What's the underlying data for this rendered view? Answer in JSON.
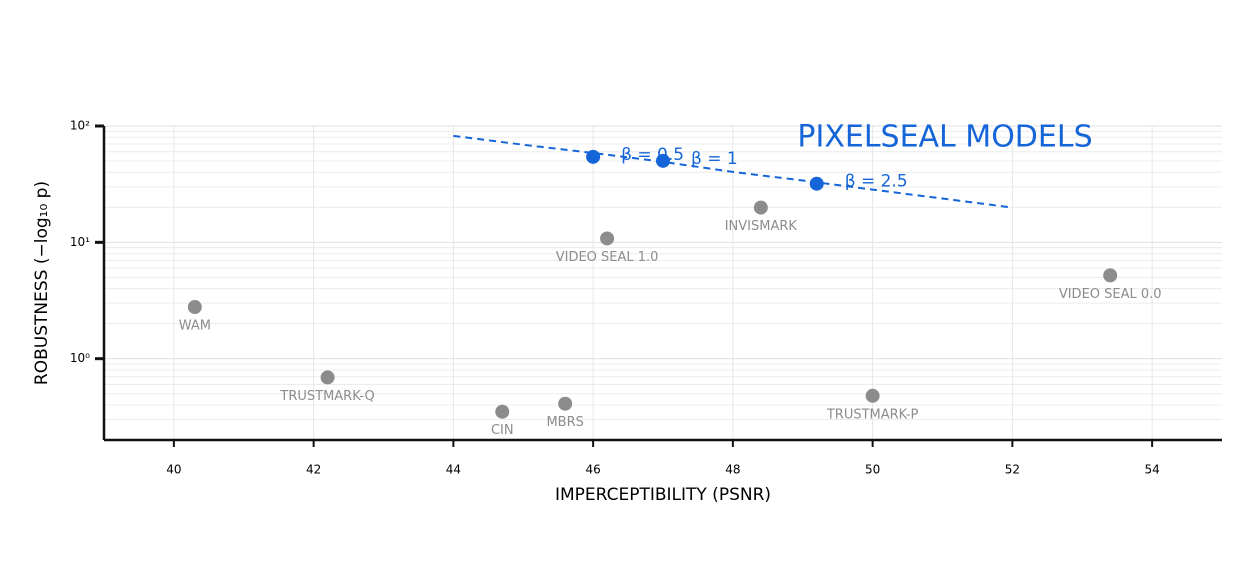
{
  "chart_data": {
    "type": "scatter",
    "xlabel": "IMPERCEPTIBILITY (PSNR)",
    "ylabel": "ROBUSTNESS (−log₁₀ p)",
    "annotation": "PIXELSEAL MODELS",
    "annotation_color": "#1565d8",
    "xlim": [
      39,
      55
    ],
    "xticks": [
      40,
      42,
      44,
      46,
      48,
      50,
      52,
      54
    ],
    "ylim": [
      0.2,
      100
    ],
    "yscale": "log",
    "yticks": [
      {
        "value": 1,
        "label": "10⁰"
      },
      {
        "value": 10,
        "label": "10¹"
      },
      {
        "value": 100,
        "label": "10²"
      }
    ],
    "grid": true,
    "minor_grid": true,
    "series": [
      {
        "color": "#8c8c8c",
        "label_position": "below",
        "x": [
          40.3,
          42.2,
          44.7,
          45.6,
          46.2,
          48.4,
          50.0,
          53.4
        ],
        "values": [
          2.78,
          0.69,
          0.35,
          0.41,
          10.8,
          19.9,
          0.48,
          5.2
        ],
        "labels": [
          "WAM",
          "TRUSTMARK-Q",
          "CIN",
          "MBRS",
          "VIDEO SEAL 1.0",
          "INVISMARK",
          "TRUSTMARK-P",
          "VIDEO SEAL 0.0"
        ]
      },
      {
        "type": "line",
        "color": "#1565d8",
        "dashed": true,
        "x": [
          44,
          45,
          46,
          47,
          48,
          49,
          50,
          51,
          52
        ],
        "values": [
          82.2,
          69,
          58.6,
          49.2,
          40.3,
          34,
          28.4,
          23.8,
          19.9
        ]
      },
      {
        "color": "#1565d8",
        "label_position": "right",
        "x": [
          46.0,
          47.0,
          49.2
        ],
        "values": [
          54.3,
          50.2,
          31.9
        ],
        "labels": [
          "β = 0.5",
          "β = 1",
          "β = 2.5"
        ]
      }
    ]
  }
}
